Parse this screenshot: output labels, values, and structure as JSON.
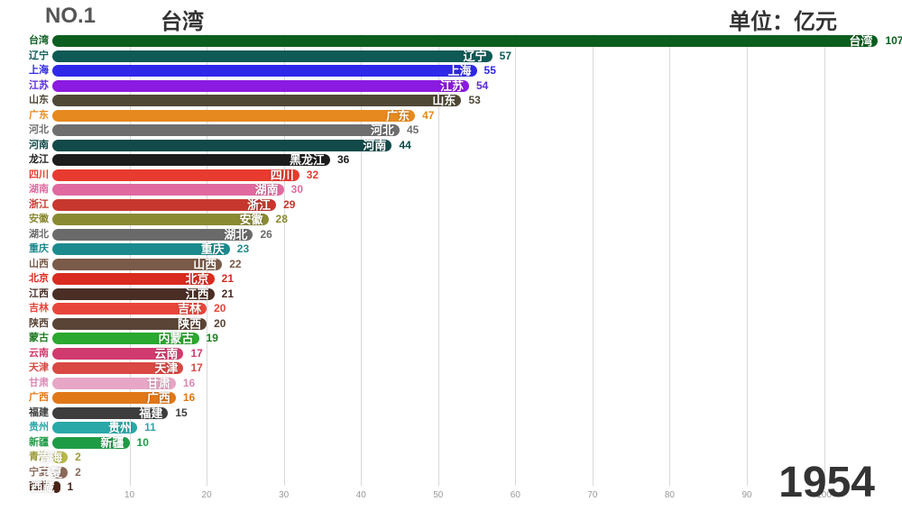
{
  "header": {
    "rank_prefix": "NO.1",
    "rank_name": "台湾",
    "unit": "单位：亿元"
  },
  "year": "1954",
  "chart": {
    "type": "bar",
    "xmin": 0,
    "xmax": 108,
    "xticks": [
      10,
      20,
      30,
      40,
      50,
      60,
      70,
      80,
      90,
      100
    ],
    "grid_color": "#d9d9d9",
    "background_color": "#ffffff",
    "row_height": 16.5,
    "bars": [
      {
        "label": "台湾",
        "value": 107,
        "color": "#0b5e1e",
        "label_color": "#0b5e1e"
      },
      {
        "label": "辽宁",
        "value": 57,
        "color": "#0f5a56",
        "label_color": "#0f5a56"
      },
      {
        "label": "上海",
        "value": 55,
        "color": "#2f28e8",
        "label_color": "#2f28e8"
      },
      {
        "label": "江苏",
        "value": 54,
        "color": "#8b1be0",
        "label_color": "#5a2bd6"
      },
      {
        "label": "山东",
        "value": 53,
        "color": "#4f4835",
        "label_color": "#4f4835"
      },
      {
        "label": "广东",
        "value": 47,
        "color": "#e68a1f",
        "label_color": "#e68a1f"
      },
      {
        "label": "河北",
        "value": 45,
        "color": "#6e6e6e",
        "label_color": "#6e6e6e"
      },
      {
        "label": "河南",
        "value": 44,
        "color": "#114a48",
        "label_color": "#114a48"
      },
      {
        "label": "龙江",
        "full": "黑龙江",
        "value": 36,
        "color": "#1c1c1c",
        "label_color": "#1c1c1c"
      },
      {
        "label": "四川",
        "value": 32,
        "color": "#e83b2f",
        "label_color": "#e83b2f"
      },
      {
        "label": "湖南",
        "value": 30,
        "color": "#e06aa0",
        "label_color": "#e06aa0"
      },
      {
        "label": "浙江",
        "value": 29,
        "color": "#c7372d",
        "label_color": "#c7372d"
      },
      {
        "label": "安徽",
        "value": 28,
        "color": "#8a8a33",
        "label_color": "#8a8a33"
      },
      {
        "label": "湖北",
        "value": 26,
        "color": "#6a6a6a",
        "label_color": "#6a6a6a"
      },
      {
        "label": "重庆",
        "value": 23,
        "color": "#1c8b8e",
        "label_color": "#1c8b8e"
      },
      {
        "label": "山西",
        "value": 22,
        "color": "#7a5a48",
        "label_color": "#7a5a48"
      },
      {
        "label": "北京",
        "value": 21,
        "color": "#d92b1f",
        "label_color": "#d92b1f"
      },
      {
        "label": "江西",
        "value": 21,
        "color": "#4a2e26",
        "label_color": "#4a2e26"
      },
      {
        "label": "吉林",
        "value": 20,
        "color": "#e8453a",
        "label_color": "#e8453a"
      },
      {
        "label": "陕西",
        "value": 20,
        "color": "#5a4436",
        "label_color": "#5a4436"
      },
      {
        "label": "蒙古",
        "full": "内蒙古",
        "value": 19,
        "color": "#2aa82f",
        "label_color": "#1f7a24"
      },
      {
        "label": "云南",
        "value": 17,
        "color": "#d13a6e",
        "label_color": "#d13a6e"
      },
      {
        "label": "天津",
        "value": 17,
        "color": "#d94842",
        "label_color": "#d94842"
      },
      {
        "label": "甘肃",
        "value": 16,
        "color": "#e7a6c5",
        "label_color": "#d989b4"
      },
      {
        "label": "广西",
        "value": 16,
        "color": "#e07818",
        "label_color": "#e07818"
      },
      {
        "label": "福建",
        "value": 15,
        "color": "#3d3d3d",
        "label_color": "#3d3d3d"
      },
      {
        "label": "贵州",
        "value": 11,
        "color": "#2aa8a8",
        "label_color": "#2aa8a8"
      },
      {
        "label": "新疆",
        "value": 10,
        "color": "#1f9c46",
        "label_color": "#1f9c46"
      },
      {
        "label": "青海",
        "value": 2,
        "color": "#b8b848",
        "label_color": "#9a9a3a"
      },
      {
        "label": "宁夏",
        "value": 2,
        "color": "#8a6a5a",
        "label_color": "#8a6a5a"
      },
      {
        "label": "西藏",
        "value": 1,
        "color": "#4a2418",
        "label_color": "#4a2418"
      }
    ]
  }
}
